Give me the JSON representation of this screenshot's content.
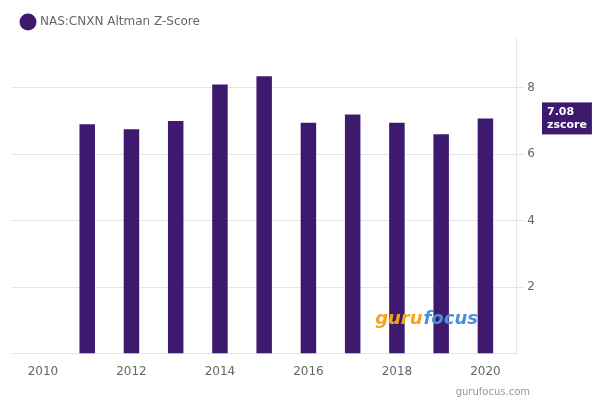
{
  "chart_data": {
    "type": "bar",
    "x": [
      2011,
      2012,
      2013,
      2014,
      2015,
      2016,
      2017,
      2018,
      2019,
      2020
    ],
    "series": [
      {
        "name": "NAS:CNXN Altman Z-Score",
        "color": "#3d1a6e",
        "values": [
          6.9,
          6.75,
          7.0,
          8.1,
          8.35,
          6.95,
          7.2,
          6.95,
          6.6,
          7.08
        ]
      }
    ],
    "xlim": [
      2009.3,
      2020.7
    ],
    "xticks": [
      2010,
      2012,
      2014,
      2016,
      2018,
      2020
    ],
    "ylim": [
      0,
      9.5
    ],
    "yticks": [
      2,
      4,
      6,
      8
    ],
    "grid": "y",
    "legend": "upper left",
    "annotations": [
      {
        "text": "7.08\nzscore",
        "y": 7.08,
        "color": "#3d1a6e"
      },
      {
        "text": [
          "guru",
          "focus"
        ],
        "colors": [
          "#f5a31a",
          "#4a90d9"
        ]
      },
      {
        "text": "gurufocus.com",
        "color": "#999999"
      }
    ]
  }
}
